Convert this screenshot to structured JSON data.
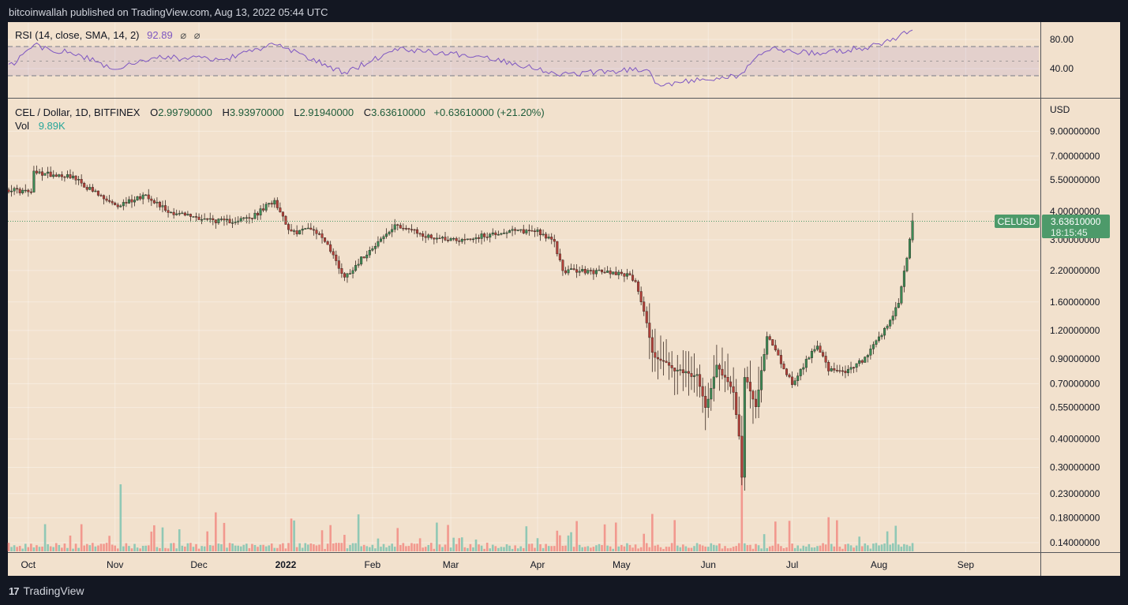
{
  "header": {
    "publisher_line": "bitcoinwallah published on TradingView.com, Aug 13, 2022 05:44 UTC"
  },
  "footer": {
    "brand": "TradingView",
    "logo_glyph": "17"
  },
  "rsi": {
    "label": "RSI (14, close, SMA, 14, 2)",
    "value": "92.89",
    "flags": [
      "⌀",
      "⌀"
    ],
    "color": "#7e57c2",
    "ticks": [
      "80.00",
      "40.00"
    ]
  },
  "legend": {
    "symbol": "CEL / Dollar, 1D, BITFINEX",
    "o_label": "O",
    "o": "2.99790000",
    "h_label": "H",
    "h": "3.93970000",
    "l_label": "L",
    "l": "2.91940000",
    "c_label": "C",
    "c": "3.63610000",
    "change": "+0.63610000 (+21.20%)",
    "vol_label": "Vol",
    "vol": "9.89K"
  },
  "colors": {
    "up": "#26a69a",
    "down": "#ef5350",
    "up_body": "#3c8a55",
    "down_body": "#b3413a",
    "background": "#f2e1cd",
    "outer": "#131722",
    "tag": "#4d9a6a"
  },
  "price_axis": {
    "currency": "USD",
    "ticks": [
      "9.00000000",
      "7.00000000",
      "5.50000000",
      "4.00000000",
      "3.00000000",
      "2.20000000",
      "1.60000000",
      "1.20000000",
      "0.90000000",
      "0.70000000",
      "0.55000000",
      "0.40000000",
      "0.30000000",
      "0.23000000",
      "0.18000000",
      "0.14000000"
    ]
  },
  "last_price": {
    "symbol": "CELUSD",
    "value": "3.63610000",
    "countdown": "18:15:45"
  },
  "time_axis": [
    "Oct",
    "Nov",
    "Dec",
    "2022",
    "Feb",
    "Mar",
    "Apr",
    "May",
    "Jun",
    "Jul",
    "Aug",
    "Sep"
  ],
  "chart_data": {
    "type": "candlestick",
    "symbol": "CEL / Dollar, 1D, BITFINEX",
    "y_scale": "log",
    "ylim": [
      0.13,
      11
    ],
    "period_start": "2021-09-24",
    "period_end": "2022-08-13",
    "price_path": [
      [
        "2021-09-24",
        5.0
      ],
      [
        "2021-10-02",
        4.85
      ],
      [
        "2021-10-03",
        5.9
      ],
      [
        "2021-10-16",
        5.75
      ],
      [
        "2021-10-22",
        5.1
      ],
      [
        "2021-11-01",
        4.2
      ],
      [
        "2021-11-12",
        4.75
      ],
      [
        "2021-11-20",
        4.0
      ],
      [
        "2021-12-01",
        3.75
      ],
      [
        "2021-12-10",
        3.6
      ],
      [
        "2021-12-20",
        3.75
      ],
      [
        "2021-12-28",
        4.5
      ],
      [
        "2022-01-03",
        3.2
      ],
      [
        "2022-01-10",
        3.4
      ],
      [
        "2022-01-15",
        3.0
      ],
      [
        "2022-01-22",
        2.05
      ],
      [
        "2022-02-01",
        2.8
      ],
      [
        "2022-02-10",
        3.5
      ],
      [
        "2022-02-20",
        3.1
      ],
      [
        "2022-03-05",
        3.0
      ],
      [
        "2022-03-20",
        3.25
      ],
      [
        "2022-04-01",
        3.3
      ],
      [
        "2022-04-07",
        2.9
      ],
      [
        "2022-04-10",
        2.2
      ],
      [
        "2022-05-01",
        2.15
      ],
      [
        "2022-05-06",
        2.0
      ],
      [
        "2022-05-10",
        1.3
      ],
      [
        "2022-05-12",
        0.95
      ],
      [
        "2022-05-20",
        0.8
      ],
      [
        "2022-05-28",
        0.75
      ],
      [
        "2022-05-31",
        0.55
      ],
      [
        "2022-06-04",
        0.85
      ],
      [
        "2022-06-10",
        0.65
      ],
      [
        "2022-06-12",
        0.42
      ],
      [
        "2022-06-13",
        0.27
      ],
      [
        "2022-06-14",
        0.75
      ],
      [
        "2022-06-18",
        0.55
      ],
      [
        "2022-06-22",
        1.15
      ],
      [
        "2022-06-28",
        0.82
      ],
      [
        "2022-07-01",
        0.7
      ],
      [
        "2022-07-10",
        1.05
      ],
      [
        "2022-07-14",
        0.8
      ],
      [
        "2022-07-20",
        0.78
      ],
      [
        "2022-07-27",
        0.9
      ],
      [
        "2022-08-01",
        1.1
      ],
      [
        "2022-08-05",
        1.3
      ],
      [
        "2022-08-08",
        1.6
      ],
      [
        "2022-08-11",
        2.5
      ],
      [
        "2022-08-13",
        3.636
      ]
    ],
    "rsi_path": [
      [
        "2021-09-24",
        42
      ],
      [
        "2021-10-03",
        72
      ],
      [
        "2021-10-20",
        58
      ],
      [
        "2021-11-01",
        38
      ],
      [
        "2021-11-15",
        56
      ],
      [
        "2021-12-10",
        52
      ],
      [
        "2021-12-28",
        74
      ],
      [
        "2022-01-22",
        34
      ],
      [
        "2022-02-10",
        68
      ],
      [
        "2022-03-15",
        55
      ],
      [
        "2022-04-10",
        32
      ],
      [
        "2022-05-10",
        40
      ],
      [
        "2022-05-14",
        18
      ],
      [
        "2022-06-12",
        30
      ],
      [
        "2022-06-22",
        68
      ],
      [
        "2022-07-10",
        60
      ],
      [
        "2022-08-01",
        72
      ],
      [
        "2022-08-13",
        93
      ]
    ],
    "rsi_bands": [
      30,
      50,
      70
    ],
    "volume_highlights": [
      [
        "2021-11-03",
        "high"
      ],
      [
        "2021-12-07",
        "mid"
      ],
      [
        "2022-01-03",
        "mid"
      ],
      [
        "2022-01-27",
        "mid"
      ],
      [
        "2022-05-12",
        "mid"
      ],
      [
        "2022-06-13",
        "peak"
      ],
      [
        "2022-07-14",
        "mid"
      ]
    ]
  }
}
